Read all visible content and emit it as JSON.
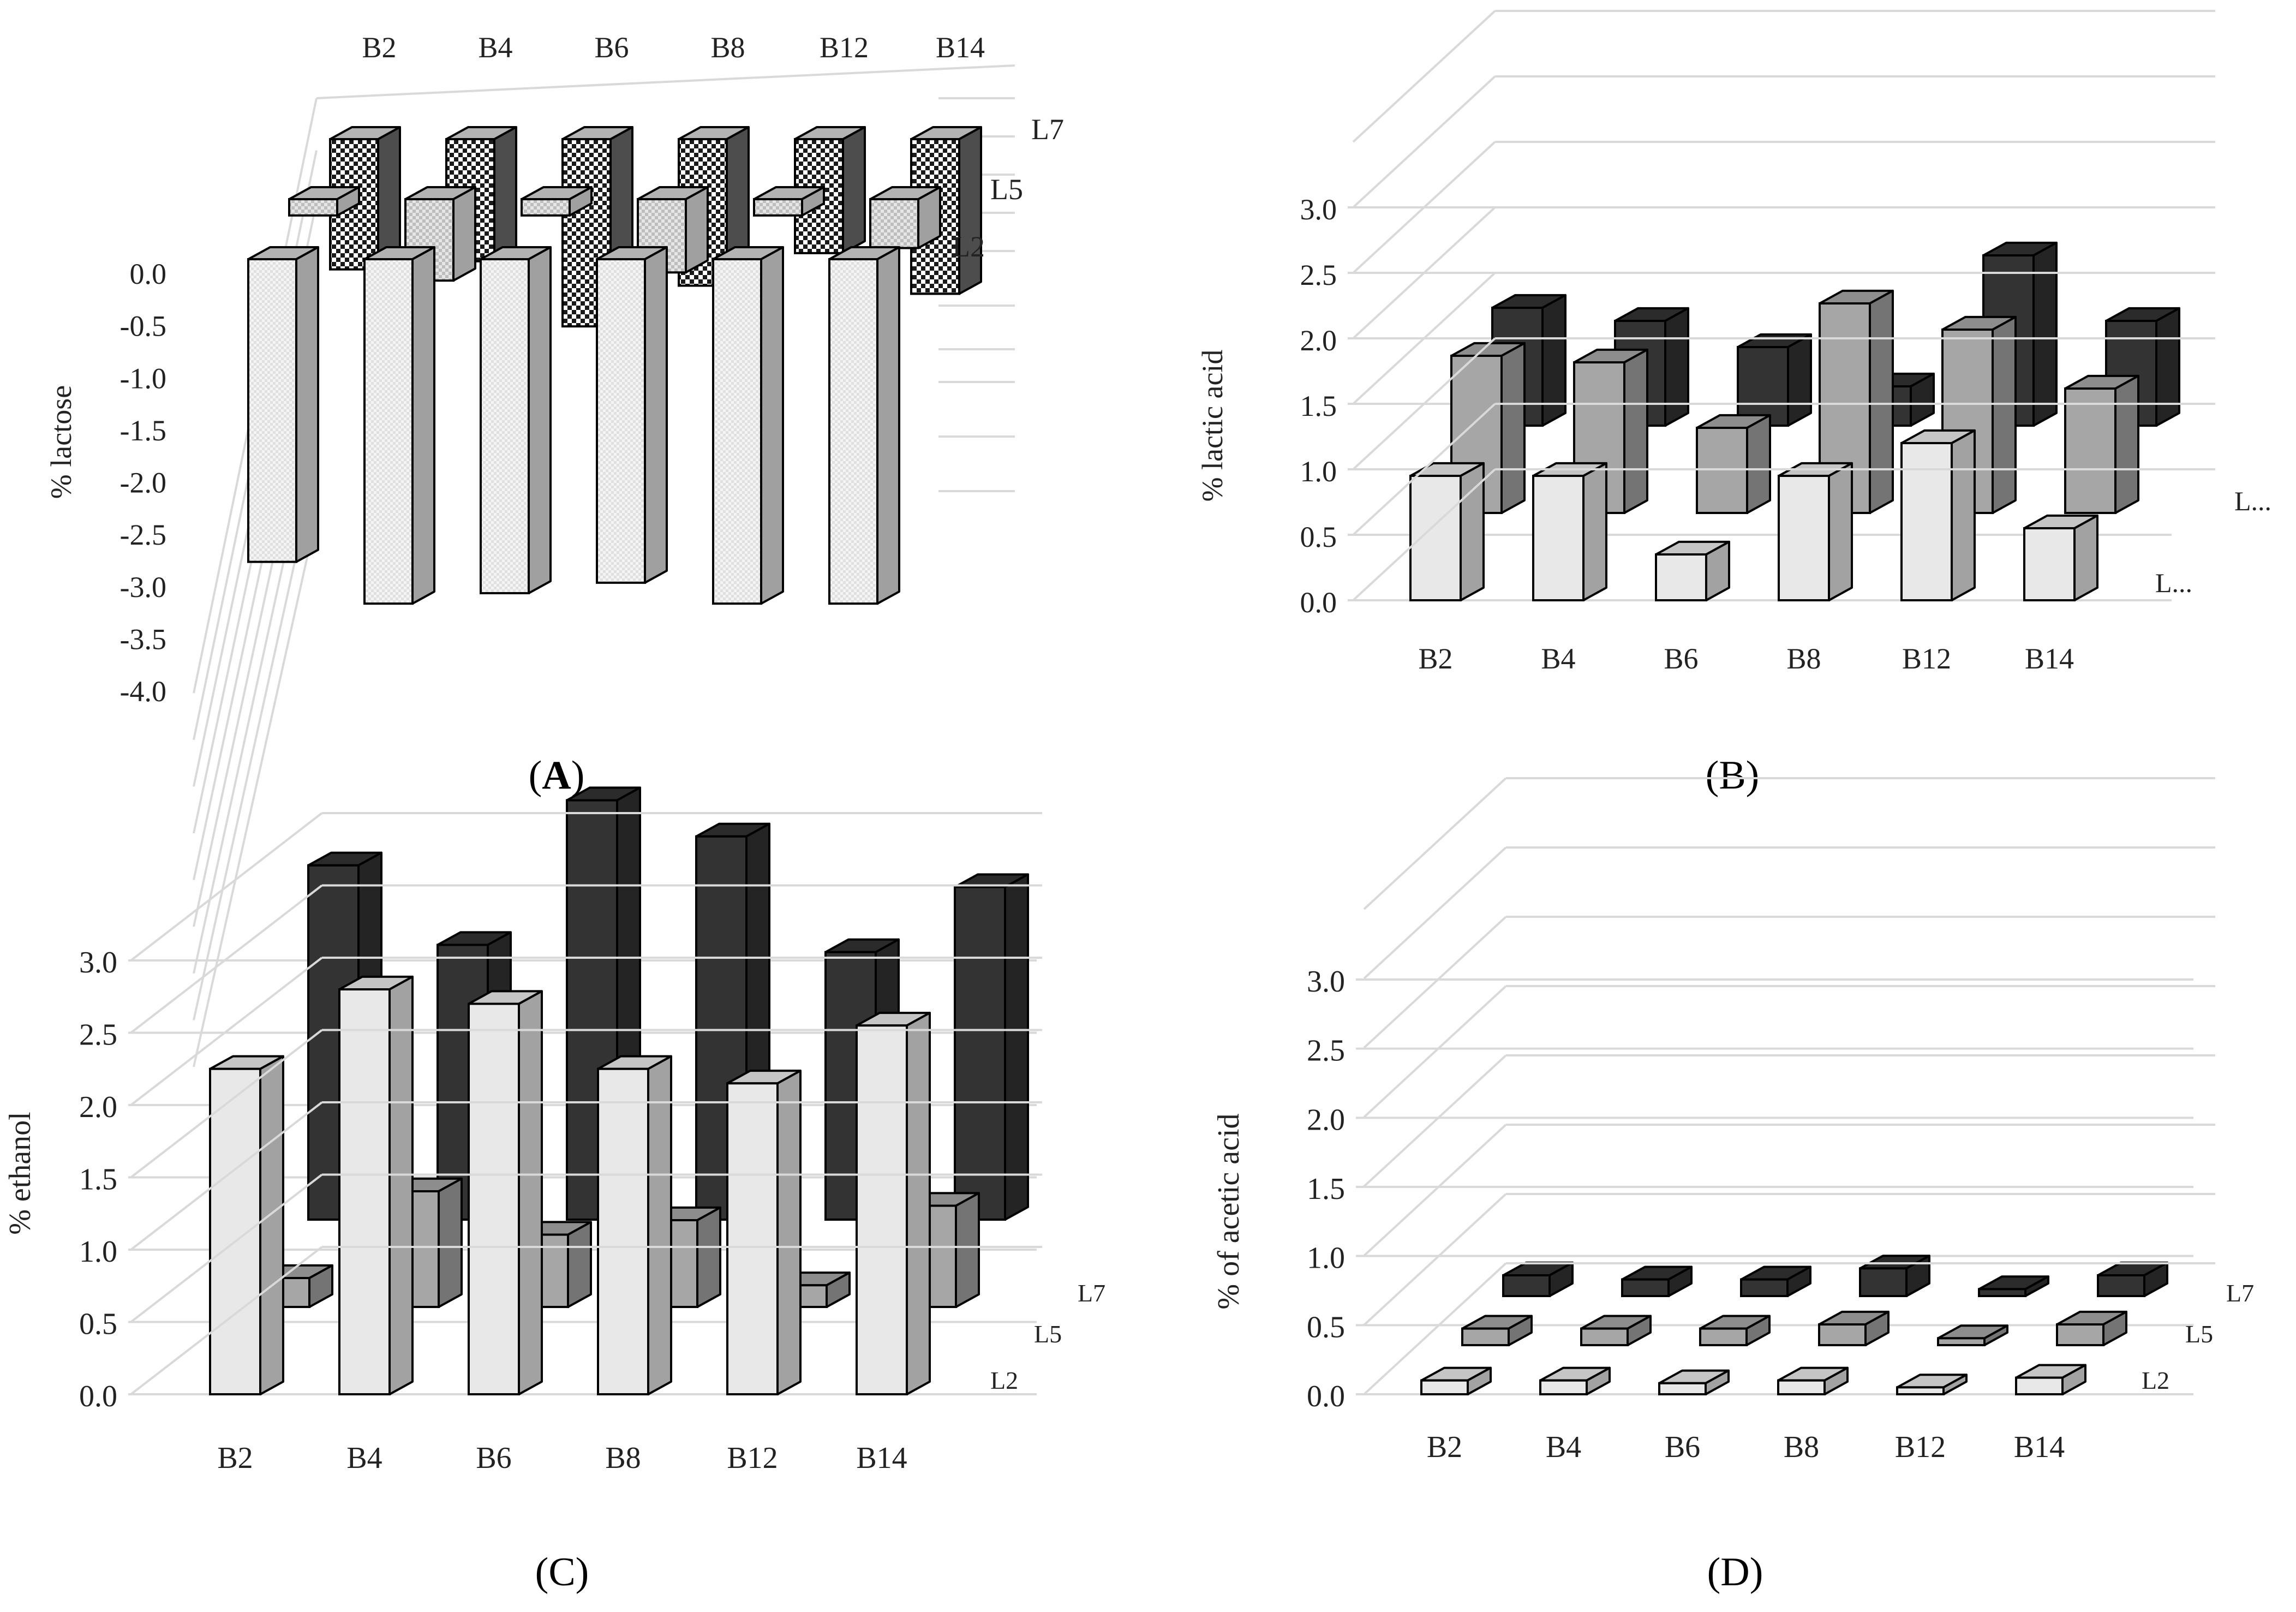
{
  "figure": {
    "panels": [
      {
        "id": "A",
        "caption_letter": "A",
        "caption_bold": true
      },
      {
        "id": "B",
        "caption_letter": "B",
        "caption_bold": false
      },
      {
        "id": "C",
        "caption_letter": "C",
        "caption_bold": false
      },
      {
        "id": "D",
        "caption_letter": "D",
        "caption_bold": false
      }
    ]
  },
  "colors": {
    "L2": "#e8e8e8",
    "L5": "#a6a6a6",
    "L7": "#333333",
    "grid": "#d9d9d9",
    "outline": "#000000"
  },
  "chart_data": [
    {
      "id": "A",
      "type": "bar",
      "style": "3d-clustered",
      "ylabel": "% lactose",
      "categories": [
        "B2",
        "B4",
        "B6",
        "B8",
        "B12",
        "B14"
      ],
      "category_axis_position": "top",
      "series_axis": [
        "L7",
        "L5",
        "L2"
      ],
      "yticks": [
        "0.0",
        "-0.5",
        "-1.0",
        "-1.5",
        "-2.0",
        "-2.5",
        "-3.0",
        "-3.5",
        "-4.0"
      ],
      "ylim": [
        -4.0,
        0.0
      ],
      "series": [
        {
          "name": "L7",
          "pattern": "checker-dark",
          "values": [
            -1.6,
            -1.5,
            -2.3,
            -1.8,
            -1.4,
            -1.9
          ]
        },
        {
          "name": "L5",
          "pattern": "checker-light",
          "values": [
            -0.2,
            -1.0,
            -0.2,
            -0.9,
            -0.2,
            -0.6
          ]
        },
        {
          "name": "L2",
          "pattern": "dots-light",
          "values": [
            -2.9,
            -3.3,
            -3.2,
            -3.1,
            -3.3,
            -3.3
          ]
        }
      ]
    },
    {
      "id": "B",
      "type": "bar",
      "style": "3d-clustered",
      "ylabel": "% lactic acid",
      "categories": [
        "B2",
        "B4",
        "B6",
        "B8",
        "B12",
        "B14"
      ],
      "category_axis_position": "bottom",
      "series_axis": [
        "L...",
        "L..."
      ],
      "yticks": [
        "0.0",
        "0.5",
        "1.0",
        "1.5",
        "2.0",
        "2.5",
        "3.0"
      ],
      "ylim": [
        0.0,
        3.0
      ],
      "series": [
        {
          "name": "L7",
          "values": [
            0.9,
            0.8,
            0.6,
            0.3,
            1.3,
            0.8
          ]
        },
        {
          "name": "L5",
          "values": [
            1.2,
            1.15,
            0.65,
            1.6,
            1.4,
            0.95
          ]
        },
        {
          "name": "L2",
          "values": [
            0.95,
            0.95,
            0.35,
            0.95,
            1.2,
            0.55
          ]
        }
      ]
    },
    {
      "id": "C",
      "type": "bar",
      "style": "3d-clustered",
      "ylabel": "% ethanol",
      "categories": [
        "B2",
        "B4",
        "B6",
        "B8",
        "B12",
        "B14"
      ],
      "category_axis_position": "bottom",
      "series_axis": [
        "L7",
        "L5",
        "L2"
      ],
      "yticks": [
        "0.0",
        "0.5",
        "1.0",
        "1.5",
        "2.0",
        "2.5",
        "3.0"
      ],
      "ylim": [
        0.0,
        3.0
      ],
      "series": [
        {
          "name": "L7",
          "values": [
            2.45,
            1.9,
            2.9,
            2.65,
            1.85,
            2.3
          ]
        },
        {
          "name": "L5",
          "values": [
            0.2,
            0.8,
            0.5,
            0.6,
            0.15,
            0.7
          ]
        },
        {
          "name": "L2",
          "values": [
            2.25,
            2.8,
            2.7,
            2.25,
            2.15,
            2.55
          ]
        }
      ]
    },
    {
      "id": "D",
      "type": "bar",
      "style": "3d-clustered",
      "ylabel": "% of acetic acid",
      "categories": [
        "B2",
        "B4",
        "B6",
        "B8",
        "B12",
        "B14"
      ],
      "category_axis_position": "bottom",
      "series_axis": [
        "L7",
        "L5",
        "L2"
      ],
      "yticks": [
        "0.0",
        "0.5",
        "1.0",
        "1.5",
        "2.0",
        "2.5",
        "3.0"
      ],
      "ylim": [
        0.0,
        3.0
      ],
      "series": [
        {
          "name": "L7",
          "values": [
            0.15,
            0.12,
            0.12,
            0.2,
            0.05,
            0.15
          ]
        },
        {
          "name": "L5",
          "values": [
            0.12,
            0.12,
            0.12,
            0.15,
            0.05,
            0.15
          ]
        },
        {
          "name": "L2",
          "values": [
            0.1,
            0.1,
            0.08,
            0.1,
            0.05,
            0.12
          ]
        }
      ]
    }
  ]
}
